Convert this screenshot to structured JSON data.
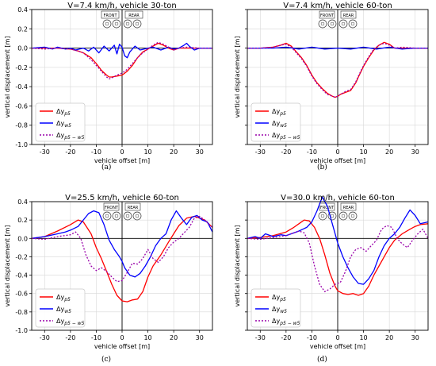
{
  "figure": {
    "panel_captions": [
      "(a)",
      "(b)",
      "(c)",
      "(d)"
    ]
  },
  "legend": {
    "entries": [
      {
        "base": "Δy",
        "sub": "p5",
        "color": "#ff0000",
        "dash": "solid"
      },
      {
        "base": "Δy",
        "sub": "w5",
        "color": "#0000ff",
        "dash": "solid"
      },
      {
        "base": "Δy",
        "sub": "p5 − w5",
        "color": "#9900aa",
        "dash": "dotted"
      }
    ]
  },
  "vehicle_icon": {
    "front_label": "FRONT",
    "rear_label": "REAR"
  },
  "chart_data": [
    {
      "type": "line",
      "title": "V=7.4 km/h, vehicle 30-ton",
      "xlabel": "vehicle offset [m]",
      "ylabel": "vertical displacement [m]",
      "xlim": [
        -35,
        35
      ],
      "ylim": [
        -1.0,
        0.4
      ],
      "xticks": [
        -30,
        -20,
        -10,
        0,
        10,
        20,
        30
      ],
      "yticks": [
        -1.0,
        -0.8,
        -0.6,
        -0.4,
        -0.2,
        0.0,
        0.2,
        0.4
      ],
      "show_yticklabels": true,
      "legend_position": "lower-left",
      "series": [
        {
          "name": "Δy_p5",
          "color": "#ff0000",
          "dash": "solid",
          "x": [
            -35,
            -30,
            -25,
            -20,
            -17,
            -15,
            -12,
            -10,
            -8,
            -6,
            -5,
            -4,
            -2,
            0,
            2,
            4,
            6,
            8,
            10,
            12,
            14,
            16,
            18,
            20,
            22,
            25,
            30,
            35
          ],
          "y": [
            0.0,
            0.0,
            0.0,
            -0.01,
            -0.03,
            -0.05,
            -0.1,
            -0.16,
            -0.23,
            -0.28,
            -0.3,
            -0.3,
            -0.29,
            -0.28,
            -0.24,
            -0.18,
            -0.1,
            -0.04,
            -0.01,
            0.02,
            0.05,
            0.03,
            0.0,
            -0.02,
            0.0,
            0.0,
            0.0,
            0.0
          ]
        },
        {
          "name": "Δy_w5",
          "color": "#0000ff",
          "dash": "solid",
          "x": [
            -35,
            -30,
            -27,
            -25,
            -22,
            -20,
            -18,
            -15,
            -13,
            -11,
            -9,
            -7,
            -5,
            -3,
            -2,
            -1,
            0,
            1,
            2,
            3,
            5,
            7,
            10,
            12,
            15,
            18,
            20,
            22,
            24,
            25,
            26,
            28,
            30,
            35
          ],
          "y": [
            0.0,
            0.01,
            -0.01,
            0.01,
            -0.01,
            0.0,
            -0.02,
            0.0,
            -0.03,
            0.01,
            -0.05,
            0.02,
            -0.03,
            0.03,
            -0.06,
            0.04,
            0.01,
            -0.08,
            -0.1,
            -0.04,
            0.02,
            -0.02,
            0.0,
            0.01,
            -0.02,
            0.01,
            -0.01,
            0.0,
            0.03,
            0.05,
            0.02,
            -0.02,
            0.0,
            0.0
          ]
        },
        {
          "name": "Δy_p5−w5",
          "color": "#9900aa",
          "dash": "dotted",
          "x": [
            -35,
            -30,
            -25,
            -20,
            -17,
            -15,
            -12,
            -10,
            -8,
            -6,
            -5,
            -4,
            -2,
            0,
            2,
            4,
            6,
            8,
            10,
            12,
            14,
            16,
            18,
            20,
            22,
            25,
            30,
            35
          ],
          "y": [
            0.0,
            -0.01,
            0.0,
            -0.01,
            -0.03,
            -0.05,
            -0.12,
            -0.18,
            -0.24,
            -0.3,
            -0.32,
            -0.31,
            -0.28,
            -0.26,
            -0.22,
            -0.16,
            -0.1,
            -0.05,
            -0.01,
            0.03,
            0.06,
            0.04,
            0.01,
            -0.02,
            0.0,
            0.01,
            0.0,
            0.0
          ]
        }
      ]
    },
    {
      "type": "line",
      "title": "V=7.4 km/h, vehicle 60-ton",
      "xlabel": "vehicle offset [m]",
      "ylabel": "vertical displacement [m]",
      "xlim": [
        -35,
        35
      ],
      "ylim": [
        -1.0,
        0.4
      ],
      "xticks": [
        -30,
        -20,
        -10,
        0,
        10,
        20,
        30
      ],
      "yticks": [
        -1.0,
        -0.8,
        -0.6,
        -0.4,
        -0.2,
        0.0,
        0.2,
        0.4
      ],
      "show_yticklabels": false,
      "legend_position": "lower-left",
      "series": [
        {
          "name": "Δy_p5",
          "color": "#ff0000",
          "dash": "solid",
          "x": [
            -35,
            -30,
            -25,
            -22,
            -20,
            -18,
            -16,
            -14,
            -12,
            -10,
            -8,
            -6,
            -4,
            -2,
            -1,
            0,
            1,
            3,
            5,
            7,
            8,
            10,
            12,
            14,
            16,
            18,
            20,
            22,
            25,
            30,
            35
          ],
          "y": [
            0.0,
            0.0,
            0.01,
            0.03,
            0.05,
            0.02,
            -0.04,
            -0.1,
            -0.18,
            -0.28,
            -0.36,
            -0.42,
            -0.47,
            -0.5,
            -0.51,
            -0.5,
            -0.48,
            -0.46,
            -0.44,
            -0.36,
            -0.3,
            -0.19,
            -0.1,
            -0.02,
            0.03,
            0.06,
            0.04,
            0.0,
            0.0,
            0.0,
            0.0
          ]
        },
        {
          "name": "Δy_w5",
          "color": "#0000ff",
          "dash": "solid",
          "x": [
            -35,
            -30,
            -25,
            -20,
            -15,
            -10,
            -5,
            0,
            5,
            10,
            15,
            20,
            25,
            30,
            35
          ],
          "y": [
            0.0,
            0.0,
            0.0,
            0.01,
            -0.01,
            0.01,
            -0.01,
            0.0,
            -0.01,
            0.01,
            -0.01,
            0.01,
            -0.01,
            0.0,
            0.0
          ]
        },
        {
          "name": "Δy_p5−w5",
          "color": "#9900aa",
          "dash": "dotted",
          "x": [
            -35,
            -30,
            -25,
            -22,
            -20,
            -18,
            -16,
            -14,
            -12,
            -10,
            -8,
            -6,
            -4,
            -2,
            -1,
            0,
            1,
            3,
            5,
            7,
            8,
            10,
            12,
            14,
            16,
            18,
            20,
            22,
            25,
            30,
            35
          ],
          "y": [
            0.0,
            0.0,
            0.01,
            0.03,
            0.04,
            0.01,
            -0.05,
            -0.11,
            -0.19,
            -0.29,
            -0.37,
            -0.43,
            -0.48,
            -0.5,
            -0.51,
            -0.5,
            -0.48,
            -0.45,
            -0.43,
            -0.35,
            -0.29,
            -0.18,
            -0.09,
            -0.01,
            0.03,
            0.05,
            0.03,
            0.0,
            0.01,
            0.0,
            0.0
          ]
        }
      ]
    },
    {
      "type": "line",
      "title": "V=25.5 km/h, vehicle 60-ton",
      "xlabel": "vehicle offset [m]",
      "ylabel": "vertical displacement [m]",
      "xlim": [
        -35,
        35
      ],
      "ylim": [
        -1.0,
        0.4
      ],
      "xticks": [
        -30,
        -20,
        -10,
        0,
        10,
        20,
        30
      ],
      "yticks": [
        -1.0,
        -0.8,
        -0.6,
        -0.4,
        -0.2,
        0.0,
        0.2,
        0.4
      ],
      "show_yticklabels": true,
      "legend_position": "lower-left",
      "series": [
        {
          "name": "Δy_p5",
          "color": "#ff0000",
          "dash": "solid",
          "x": [
            -35,
            -30,
            -25,
            -20,
            -17,
            -15,
            -12,
            -10,
            -8,
            -6,
            -4,
            -2,
            0,
            2,
            4,
            6,
            8,
            10,
            12,
            15,
            18,
            20,
            22,
            25,
            28,
            30,
            32,
            35
          ],
          "y": [
            0.0,
            0.02,
            0.08,
            0.15,
            0.2,
            0.18,
            0.05,
            -0.1,
            -0.22,
            -0.36,
            -0.5,
            -0.62,
            -0.68,
            -0.69,
            -0.67,
            -0.66,
            -0.58,
            -0.42,
            -0.3,
            -0.18,
            -0.04,
            0.05,
            0.14,
            0.22,
            0.24,
            0.22,
            0.2,
            0.12
          ]
        },
        {
          "name": "Δy_w5",
          "color": "#0000ff",
          "dash": "solid",
          "x": [
            -35,
            -30,
            -25,
            -22,
            -20,
            -17,
            -15,
            -13,
            -11,
            -9,
            -7,
            -5,
            -3,
            -1,
            0,
            1,
            3,
            5,
            7,
            9,
            11,
            13,
            15,
            17,
            19,
            21,
            23,
            25,
            27,
            29,
            31,
            33,
            35
          ],
          "y": [
            0.0,
            0.02,
            0.05,
            0.07,
            0.09,
            0.13,
            0.2,
            0.27,
            0.3,
            0.28,
            0.15,
            -0.02,
            -0.12,
            -0.2,
            -0.25,
            -0.32,
            -0.4,
            -0.42,
            -0.38,
            -0.3,
            -0.2,
            -0.08,
            0.0,
            0.05,
            0.2,
            0.3,
            0.22,
            0.15,
            0.23,
            0.25,
            0.2,
            0.18,
            0.07
          ]
        },
        {
          "name": "Δy_p5−w5",
          "color": "#9900aa",
          "dash": "dotted",
          "x": [
            -35,
            -30,
            -25,
            -20,
            -18,
            -16,
            -14,
            -12,
            -10,
            -8,
            -6,
            -4,
            -2,
            0,
            2,
            4,
            6,
            8,
            10,
            12,
            14,
            16,
            18,
            20,
            22,
            24,
            26,
            28,
            30,
            32,
            35
          ],
          "y": [
            0.0,
            -0.01,
            0.02,
            0.04,
            0.07,
            0.0,
            -0.18,
            -0.3,
            -0.35,
            -0.32,
            -0.36,
            -0.42,
            -0.47,
            -0.46,
            -0.37,
            -0.27,
            -0.28,
            -0.22,
            -0.12,
            -0.22,
            -0.26,
            -0.2,
            -0.1,
            -0.04,
            0.0,
            0.06,
            0.12,
            0.22,
            0.24,
            0.2,
            0.12
          ]
        }
      ]
    },
    {
      "type": "line",
      "title": "V=30.0 km/h, vehicle 60-ton",
      "xlabel": "vehicle offset [m]",
      "ylabel": "vertical displacement [m]",
      "xlim": [
        -35,
        35
      ],
      "ylim": [
        -1.0,
        0.4
      ],
      "xticks": [
        -30,
        -20,
        -10,
        0,
        10,
        20,
        30
      ],
      "yticks": [
        -1.0,
        -0.8,
        -0.6,
        -0.4,
        -0.2,
        0.0,
        0.2,
        0.4
      ],
      "show_yticklabels": false,
      "legend_position": "lower-left",
      "series": [
        {
          "name": "Δy_p5",
          "color": "#ff0000",
          "dash": "solid",
          "x": [
            -35,
            -30,
            -25,
            -20,
            -17,
            -15,
            -13,
            -11,
            -9,
            -7,
            -5,
            -3,
            -1,
            0,
            2,
            4,
            6,
            8,
            10,
            12,
            14,
            16,
            18,
            20,
            22,
            25,
            28,
            30,
            32,
            35
          ],
          "y": [
            0.0,
            0.01,
            0.03,
            0.07,
            0.12,
            0.16,
            0.2,
            0.19,
            0.12,
            0.0,
            -0.18,
            -0.38,
            -0.52,
            -0.57,
            -0.6,
            -0.61,
            -0.6,
            -0.62,
            -0.6,
            -0.52,
            -0.4,
            -0.3,
            -0.2,
            -0.1,
            -0.02,
            0.05,
            0.1,
            0.13,
            0.15,
            0.16
          ]
        },
        {
          "name": "Δy_w5",
          "color": "#0000ff",
          "dash": "solid",
          "x": [
            -35,
            -32,
            -30,
            -28,
            -25,
            -22,
            -20,
            -18,
            -15,
            -12,
            -10,
            -8,
            -6,
            -4,
            -2,
            0,
            2,
            4,
            6,
            8,
            10,
            12,
            14,
            16,
            18,
            20,
            22,
            24,
            26,
            28,
            30,
            32,
            35
          ],
          "y": [
            0.0,
            0.02,
            0.0,
            0.05,
            0.02,
            0.04,
            0.03,
            0.05,
            0.08,
            0.12,
            0.18,
            0.3,
            0.45,
            0.35,
            0.15,
            -0.05,
            -0.2,
            -0.32,
            -0.42,
            -0.49,
            -0.5,
            -0.44,
            -0.35,
            -0.2,
            -0.08,
            0.0,
            0.05,
            0.12,
            0.22,
            0.31,
            0.25,
            0.16,
            0.18
          ]
        },
        {
          "name": "Δy_p5−w5",
          "color": "#9900aa",
          "dash": "dotted",
          "x": [
            -35,
            -30,
            -25,
            -20,
            -17,
            -15,
            -13,
            -11,
            -9,
            -7,
            -5,
            -3,
            -1,
            1,
            3,
            5,
            7,
            9,
            11,
            13,
            15,
            17,
            19,
            21,
            23,
            25,
            27,
            29,
            31,
            33,
            35
          ],
          "y": [
            0.0,
            -0.01,
            0.01,
            0.03,
            0.06,
            0.08,
            0.06,
            -0.05,
            -0.3,
            -0.5,
            -0.58,
            -0.55,
            -0.5,
            -0.48,
            -0.36,
            -0.2,
            -0.12,
            -0.1,
            -0.14,
            -0.08,
            -0.02,
            0.1,
            0.14,
            0.12,
            0.0,
            -0.06,
            -0.1,
            -0.02,
            0.05,
            0.1,
            0.0
          ]
        }
      ]
    }
  ]
}
